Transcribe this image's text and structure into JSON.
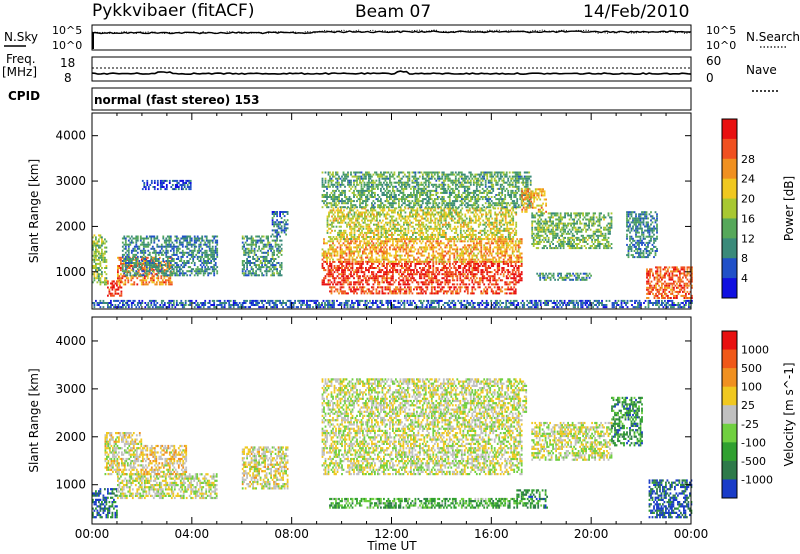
{
  "header": {
    "radar": "Pykkvibaer (fitACF)",
    "beam": "Beam 07",
    "date": "14/Feb/2010"
  },
  "strip_labels": {
    "nsky": "N.Sky",
    "nsky_tick_hi": "10^5",
    "nsky_tick_lo": "10^0",
    "nsearch": "N.Search",
    "nsearch_tick_hi": "10^5",
    "nsearch_tick_lo": "10^0",
    "freq": "Freq.",
    "freq_unit": "[MHz]",
    "freq_tick_hi": "18",
    "freq_tick_lo": "8",
    "nave": "Nave",
    "nave_tick_hi": "60",
    "nave_tick_lo": "0",
    "cpid_label": "CPID",
    "cpid_text": "normal (fast stereo) 153"
  },
  "chart_data": [
    {
      "type": "heatmap",
      "name": "power",
      "ylabel": "Slant Range [km]",
      "yticks": [
        "1000",
        "2000",
        "3000",
        "4000"
      ],
      "ylim": [
        180,
        4500
      ],
      "colorbar_label": "Power [dB]",
      "colorbar_ticks": [
        "4",
        "8",
        "12",
        "16",
        "20",
        "24",
        "28"
      ],
      "colorscale": [
        "#1010e0",
        "#2050c8",
        "#3a8a7a",
        "#56a85a",
        "#a8c832",
        "#f0c820",
        "#f09020",
        "#f05020",
        "#e81010"
      ],
      "regions": [
        {
          "t": [
            0.0,
            0.6
          ],
          "r": [
            700,
            1800
          ],
          "level": 0.45
        },
        {
          "t": [
            0.6,
            1.2
          ],
          "r": [
            450,
            800
          ],
          "level": 0.95
        },
        {
          "t": [
            1.0,
            3.2
          ],
          "r": [
            700,
            1300
          ],
          "level": 0.8
        },
        {
          "t": [
            1.2,
            5.0
          ],
          "r": [
            900,
            1800
          ],
          "level": 0.25
        },
        {
          "t": [
            2.0,
            4.0
          ],
          "r": [
            2800,
            3000
          ],
          "level": 0.1
        },
        {
          "t": [
            6.0,
            7.6
          ],
          "r": [
            900,
            1800
          ],
          "level": 0.3
        },
        {
          "t": [
            7.2,
            7.8
          ],
          "r": [
            1800,
            2300
          ],
          "level": 0.2
        },
        {
          "t": [
            9.2,
            17.2
          ],
          "r": [
            700,
            1200
          ],
          "level": 0.95
        },
        {
          "t": [
            9.2,
            17.2
          ],
          "r": [
            1200,
            1700
          ],
          "level": 0.7
        },
        {
          "t": [
            9.4,
            17.0
          ],
          "r": [
            1700,
            2400
          ],
          "level": 0.55
        },
        {
          "t": [
            9.2,
            17.6
          ],
          "r": [
            2400,
            3200
          ],
          "level": 0.35
        },
        {
          "t": [
            9.5,
            17.0
          ],
          "r": [
            500,
            650
          ],
          "level": 0.9
        },
        {
          "t": [
            17.2,
            18.2
          ],
          "r": [
            2300,
            2800
          ],
          "level": 0.7
        },
        {
          "t": [
            17.6,
            20.8
          ],
          "r": [
            1500,
            2300
          ],
          "level": 0.4
        },
        {
          "t": [
            17.8,
            20.0
          ],
          "r": [
            800,
            950
          ],
          "level": 0.3
        },
        {
          "t": [
            21.4,
            22.6
          ],
          "r": [
            1300,
            2300
          ],
          "level": 0.25
        },
        {
          "t": [
            22.2,
            24.0
          ],
          "r": [
            400,
            1100
          ],
          "level": 0.85
        },
        {
          "t": [
            0.0,
            24.0
          ],
          "r": [
            200,
            350
          ],
          "level": 0.15
        }
      ]
    },
    {
      "type": "heatmap",
      "name": "velocity",
      "ylabel": "Slant Range [km]",
      "yticks": [
        "1000",
        "2000",
        "3000",
        "4000"
      ],
      "ylim": [
        180,
        4500
      ],
      "colorbar_label": "Velocity [m s^-1]",
      "colorbar_ticks": [
        "1000",
        "500",
        "100",
        "25",
        "-25",
        "-100",
        "-500",
        "-1000"
      ],
      "colorscale": [
        "#1a3cc8",
        "#2e7a4a",
        "#30a030",
        "#70d040",
        "#c0c0c0",
        "#f0c820",
        "#f09020",
        "#f05818",
        "#e81010"
      ],
      "regions": [
        {
          "t": [
            0.0,
            1.0
          ],
          "r": [
            300,
            900
          ],
          "level": 0.1
        },
        {
          "t": [
            0.5,
            2.0
          ],
          "r": [
            1200,
            2100
          ],
          "level": 0.55
        },
        {
          "t": [
            1.0,
            5.0
          ],
          "r": [
            700,
            1200
          ],
          "level": 0.5
        },
        {
          "t": [
            2.0,
            3.8
          ],
          "r": [
            1200,
            1800
          ],
          "level": 0.6
        },
        {
          "t": [
            6.0,
            7.8
          ],
          "r": [
            900,
            1800
          ],
          "level": 0.55
        },
        {
          "t": [
            9.2,
            17.2
          ],
          "r": [
            1200,
            2500
          ],
          "level": 0.5
        },
        {
          "t": [
            9.2,
            17.4
          ],
          "r": [
            2500,
            3200
          ],
          "level": 0.5
        },
        {
          "t": [
            9.5,
            17.0
          ],
          "r": [
            500,
            700
          ],
          "level": 0.3
        },
        {
          "t": [
            17.0,
            18.2
          ],
          "r": [
            500,
            900
          ],
          "level": 0.2
        },
        {
          "t": [
            17.6,
            20.8
          ],
          "r": [
            1500,
            2300
          ],
          "level": 0.5
        },
        {
          "t": [
            20.8,
            22.0
          ],
          "r": [
            1800,
            2800
          ],
          "level": 0.2
        },
        {
          "t": [
            22.3,
            24.0
          ],
          "r": [
            300,
            1100
          ],
          "level": 0.05
        }
      ]
    }
  ],
  "xaxis": {
    "label": "Time UT",
    "ticks": [
      "00:00",
      "04:00",
      "08:00",
      "12:00",
      "16:00",
      "20:00",
      "00:00"
    ]
  },
  "colors": {
    "axis": "#000000",
    "background": "#ffffff"
  }
}
